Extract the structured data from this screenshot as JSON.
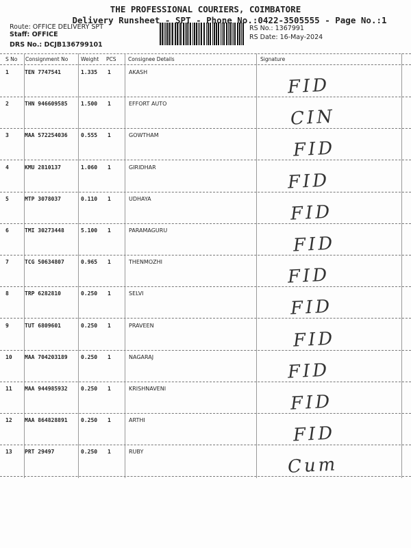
{
  "header": {
    "company": "THE PROFESSIONAL COURIERS, COIMBATORE",
    "subtitle": "Delivery Runsheet - SPT - Phone No.:0422-3505555 - Page No.:1",
    "route": "Route: OFFICE DELIVERY SPT",
    "staff": "Staff: OFFICE",
    "drs": "DRS No.: DCJB136799101",
    "rs_no": "RS No.: 1367991",
    "rs_date": "RS Date: 16-May-2024"
  },
  "columns": [
    "S No",
    "Consignment No",
    "Weight",
    "PCS",
    "Consignee Details",
    "Signature"
  ],
  "rows": [
    {
      "sno": "1",
      "cn": "TEN 7747541",
      "wt": "1.335",
      "pcs": "1",
      "name": "AKASH",
      "sig": "FID"
    },
    {
      "sno": "2",
      "cn": "THN 946609585",
      "wt": "1.500",
      "pcs": "1",
      "name": "EFFORT AUTO",
      "sig": "CIN"
    },
    {
      "sno": "3",
      "cn": "MAA 572254036",
      "wt": "0.555",
      "pcs": "1",
      "name": "GOWTHAM",
      "sig": "FID"
    },
    {
      "sno": "4",
      "cn": "KMU 2810137",
      "wt": "1.060",
      "pcs": "1",
      "name": "GIRIDHAR",
      "sig": "FID"
    },
    {
      "sno": "5",
      "cn": "MTP 3078037",
      "wt": "0.110",
      "pcs": "1",
      "name": "UDHAYA",
      "sig": "FID"
    },
    {
      "sno": "6",
      "cn": "TMI 30273448",
      "wt": "5.100",
      "pcs": "1",
      "name": "PARAMAGURU",
      "sig": "FID"
    },
    {
      "sno": "7",
      "cn": "TCG 50634807",
      "wt": "0.965",
      "pcs": "1",
      "name": "THENMOZHI",
      "sig": "FID"
    },
    {
      "sno": "8",
      "cn": "TRP 6282810",
      "wt": "0.250",
      "pcs": "1",
      "name": "SELVI",
      "sig": "FID"
    },
    {
      "sno": "9",
      "cn": "TUT 6809601",
      "wt": "0.250",
      "pcs": "1",
      "name": "PRAVEEN",
      "sig": "FID"
    },
    {
      "sno": "10",
      "cn": "MAA 704203189",
      "wt": "0.250",
      "pcs": "1",
      "name": "NAGARAJ",
      "sig": "FID"
    },
    {
      "sno": "11",
      "cn": "MAA 944985932",
      "wt": "0.250",
      "pcs": "1",
      "name": "KRISHNAVENI",
      "sig": "FID"
    },
    {
      "sno": "12",
      "cn": "MAA 864828891",
      "wt": "0.250",
      "pcs": "1",
      "name": "ARTHI",
      "sig": "FID"
    },
    {
      "sno": "13",
      "cn": "PRT 29497",
      "wt": "0.250",
      "pcs": "1",
      "name": "RUBY",
      "sig": "Cum"
    }
  ]
}
